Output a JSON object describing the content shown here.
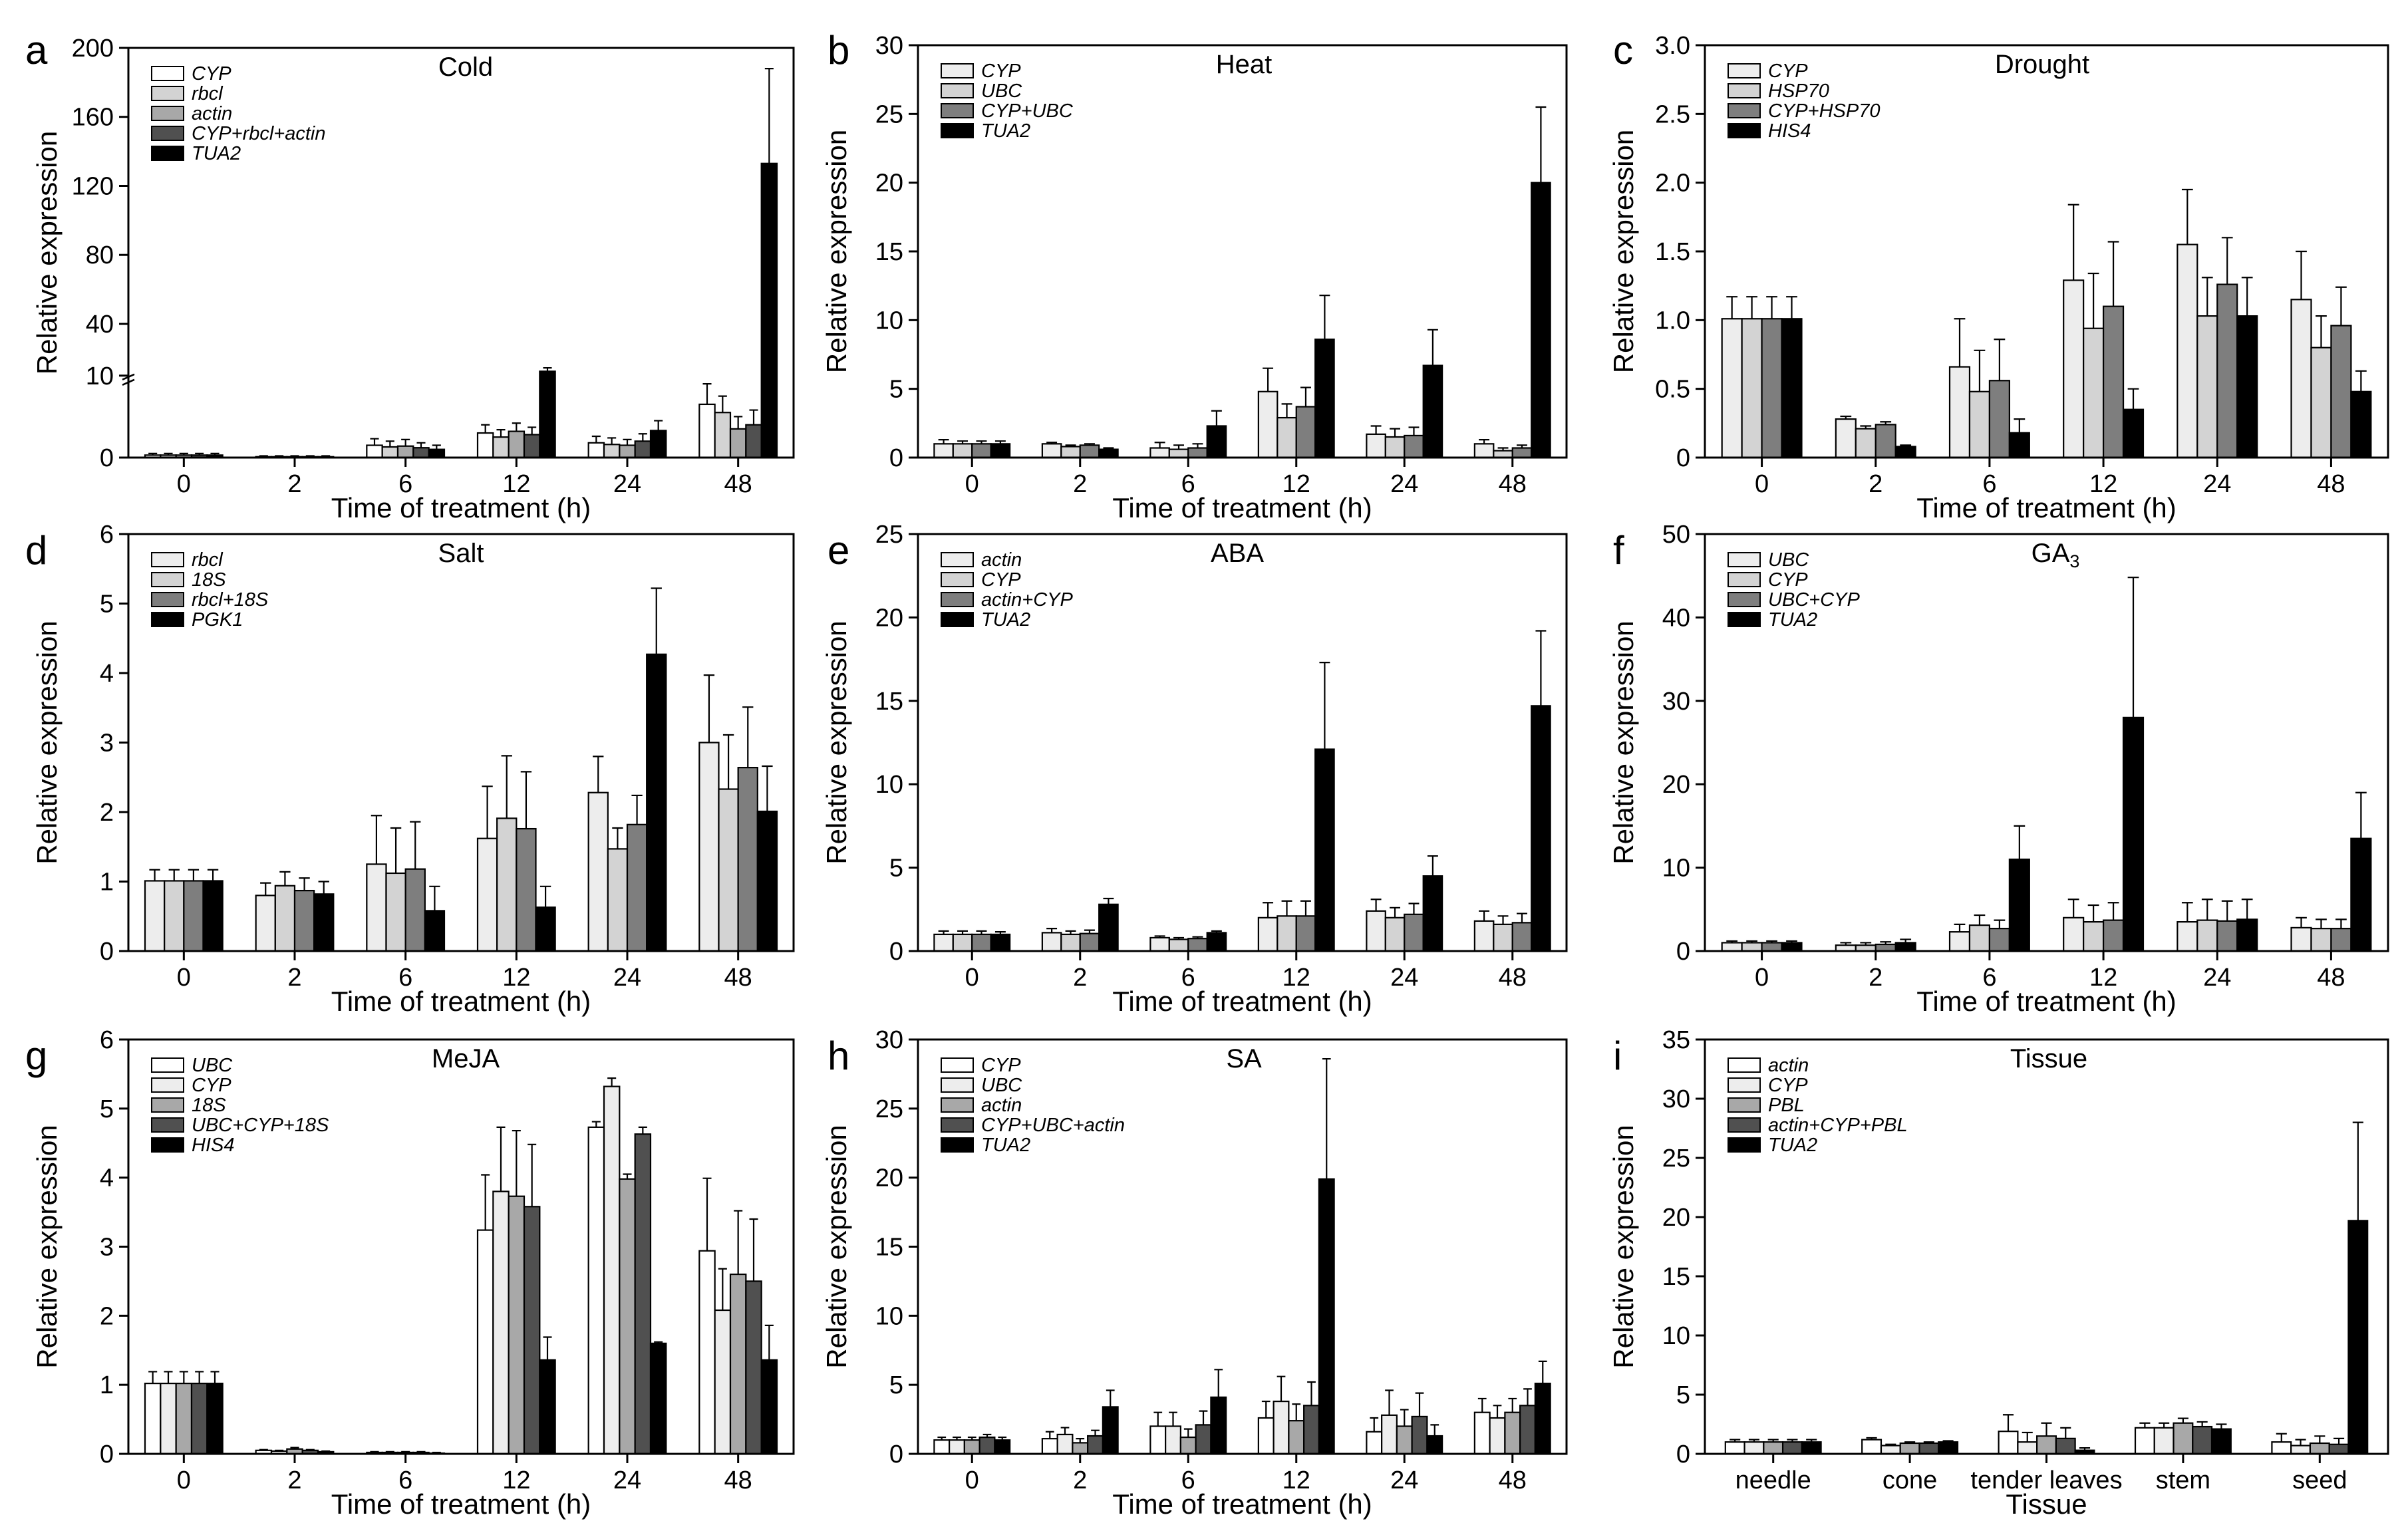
{
  "colors": {
    "white": "#ffffff",
    "very_light": "#ededed",
    "light": "#d3d3d3",
    "mid": "#a8a8a8",
    "dark": "#7e7e7e",
    "darker": "#505050",
    "black": "#000000"
  },
  "chart_data": [
    {
      "panel": "a",
      "type": "bar",
      "title": "Cold",
      "xlabel": "Time of treatment (h)",
      "ylabel": "Relative expression",
      "categories": [
        "0",
        "2",
        "6",
        "12",
        "24",
        "48"
      ],
      "y_ticks": [
        "0",
        "10",
        "40",
        "80",
        "120",
        "160",
        "200"
      ],
      "axis_break": "broken axis: 0–10 linear segment, 10–200 compressed segment",
      "series": [
        {
          "name": "CYP",
          "color": "white",
          "values": [
            0.3,
            0.1,
            1.5,
            3.0,
            1.8,
            6.5
          ],
          "errors": [
            0.2,
            0.1,
            0.8,
            1.0,
            0.8,
            2.5
          ]
        },
        {
          "name": "rbcl",
          "color": "light",
          "values": [
            0.3,
            0.1,
            1.3,
            2.5,
            1.6,
            5.5
          ],
          "errors": [
            0.2,
            0.1,
            0.7,
            0.9,
            0.8,
            2.0
          ]
        },
        {
          "name": "actin",
          "color": "mid",
          "values": [
            0.3,
            0.1,
            1.4,
            3.2,
            1.5,
            3.5
          ],
          "errors": [
            0.2,
            0.1,
            0.8,
            1.0,
            0.7,
            1.5
          ]
        },
        {
          "name": "CYP+rbcl+actin",
          "color": "darker",
          "values": [
            0.3,
            0.1,
            1.2,
            2.8,
            2.0,
            4.0
          ],
          "errors": [
            0.2,
            0.1,
            0.6,
            0.9,
            0.9,
            1.8
          ]
        },
        {
          "name": "TUA2",
          "color": "black",
          "values": [
            0.3,
            0.1,
            1.0,
            12.5,
            3.3,
            133
          ],
          "errors": [
            0.2,
            0.1,
            0.5,
            2.0,
            1.2,
            55
          ]
        }
      ]
    },
    {
      "panel": "b",
      "type": "bar",
      "title": "Heat",
      "xlabel": "Time of treatment (h)",
      "ylabel": "Relative expression",
      "categories": [
        "0",
        "2",
        "6",
        "12",
        "24",
        "48"
      ],
      "y_ticks": [
        "0",
        "5",
        "10",
        "15",
        "20",
        "25",
        "30"
      ],
      "ylim": [
        0,
        30
      ],
      "series": [
        {
          "name": "CYP",
          "color": "very_light",
          "values": [
            1.0,
            1.0,
            0.7,
            4.8,
            1.7,
            1.0
          ],
          "errors": [
            0.3,
            0.1,
            0.4,
            1.7,
            0.6,
            0.3
          ]
        },
        {
          "name": "UBC",
          "color": "light",
          "values": [
            1.0,
            0.8,
            0.6,
            2.9,
            1.5,
            0.5
          ],
          "errors": [
            0.2,
            0.1,
            0.3,
            1.0,
            0.6,
            0.2
          ]
        },
        {
          "name": "CYP+UBC",
          "color": "dark",
          "values": [
            1.0,
            0.9,
            0.7,
            3.7,
            1.6,
            0.7
          ],
          "errors": [
            0.2,
            0.1,
            0.3,
            1.4,
            0.6,
            0.2
          ]
        },
        {
          "name": "TUA2",
          "color": "black",
          "values": [
            1.0,
            0.6,
            2.3,
            8.6,
            6.7,
            20.0
          ],
          "errors": [
            0.2,
            0.1,
            1.1,
            3.2,
            2.6,
            5.5
          ]
        }
      ]
    },
    {
      "panel": "c",
      "type": "bar",
      "title": "Drought",
      "xlabel": "Time of treatment (h)",
      "ylabel": "Relative expression",
      "categories": [
        "0",
        "2",
        "6",
        "12",
        "24",
        "48"
      ],
      "y_ticks": [
        "0",
        "0.5",
        "1.0",
        "1.5",
        "2.0",
        "2.5",
        "3.0"
      ],
      "ylim": [
        0,
        3.0
      ],
      "series": [
        {
          "name": "CYP",
          "color": "very_light",
          "values": [
            1.01,
            0.28,
            0.66,
            1.29,
            1.55,
            1.15
          ],
          "errors": [
            0.16,
            0.02,
            0.35,
            0.55,
            0.4,
            0.35
          ]
        },
        {
          "name": "HSP70",
          "color": "light",
          "values": [
            1.01,
            0.21,
            0.48,
            0.94,
            1.03,
            0.8
          ],
          "errors": [
            0.16,
            0.02,
            0.3,
            0.4,
            0.28,
            0.23
          ]
        },
        {
          "name": "CYP+HSP70",
          "color": "dark",
          "values": [
            1.01,
            0.24,
            0.56,
            1.1,
            1.26,
            0.96
          ],
          "errors": [
            0.16,
            0.02,
            0.3,
            0.47,
            0.34,
            0.28
          ]
        },
        {
          "name": "HIS4",
          "color": "black",
          "values": [
            1.01,
            0.08,
            0.18,
            0.35,
            1.03,
            0.48
          ],
          "errors": [
            0.16,
            0.01,
            0.1,
            0.15,
            0.28,
            0.15
          ]
        }
      ]
    },
    {
      "panel": "d",
      "type": "bar",
      "title": "Salt",
      "xlabel": "Time of treatment (h)",
      "ylabel": "Relative expression",
      "categories": [
        "0",
        "2",
        "6",
        "12",
        "24",
        "48"
      ],
      "y_ticks": [
        "0",
        "1",
        "2",
        "3",
        "4",
        "5",
        "6"
      ],
      "ylim": [
        0,
        6
      ],
      "series": [
        {
          "name": "rbcl",
          "color": "very_light",
          "values": [
            1.01,
            0.8,
            1.25,
            1.62,
            2.28,
            3.0
          ],
          "errors": [
            0.16,
            0.18,
            0.7,
            0.75,
            0.52,
            0.97
          ]
        },
        {
          "name": "18S",
          "color": "light",
          "values": [
            1.01,
            0.94,
            1.12,
            1.91,
            1.47,
            2.33
          ],
          "errors": [
            0.16,
            0.2,
            0.65,
            0.9,
            0.3,
            0.78
          ]
        },
        {
          "name": "rbcl+18S",
          "color": "dark",
          "values": [
            1.01,
            0.87,
            1.18,
            1.76,
            1.82,
            2.64
          ],
          "errors": [
            0.16,
            0.18,
            0.68,
            0.82,
            0.42,
            0.87
          ]
        },
        {
          "name": "PGK1",
          "color": "black",
          "values": [
            1.01,
            0.82,
            0.58,
            0.63,
            4.27,
            2.01
          ],
          "errors": [
            0.16,
            0.18,
            0.35,
            0.3,
            0.95,
            0.65
          ]
        }
      ]
    },
    {
      "panel": "e",
      "type": "bar",
      "title": "ABA",
      "xlabel": "Time of treatment (h)",
      "ylabel": "Relative expression",
      "categories": [
        "0",
        "2",
        "6",
        "12",
        "24",
        "48"
      ],
      "y_ticks": [
        "0",
        "5",
        "10",
        "15",
        "20",
        "25"
      ],
      "ylim": [
        0,
        25
      ],
      "series": [
        {
          "name": "actin",
          "color": "very_light",
          "values": [
            1.0,
            1.1,
            0.8,
            2.0,
            2.4,
            1.8
          ],
          "errors": [
            0.2,
            0.25,
            0.1,
            0.9,
            0.7,
            0.6
          ]
        },
        {
          "name": "CYP",
          "color": "light",
          "values": [
            1.0,
            1.0,
            0.7,
            2.1,
            2.0,
            1.6
          ],
          "errors": [
            0.2,
            0.2,
            0.1,
            0.9,
            0.6,
            0.5
          ]
        },
        {
          "name": "actin+CYP",
          "color": "dark",
          "values": [
            1.0,
            1.05,
            0.75,
            2.1,
            2.2,
            1.7
          ],
          "errors": [
            0.2,
            0.2,
            0.1,
            0.9,
            0.65,
            0.55
          ]
        },
        {
          "name": "TUA2",
          "color": "black",
          "values": [
            1.0,
            2.8,
            1.1,
            12.1,
            4.5,
            14.7
          ],
          "errors": [
            0.15,
            0.35,
            0.1,
            5.2,
            1.2,
            4.5
          ]
        }
      ]
    },
    {
      "panel": "f",
      "type": "bar",
      "title": "GA3",
      "xlabel": "Time of treatment (h)",
      "ylabel": "Relative expression",
      "categories": [
        "0",
        "2",
        "6",
        "12",
        "24",
        "48"
      ],
      "y_ticks": [
        "0",
        "10",
        "20",
        "30",
        "40",
        "50"
      ],
      "ylim": [
        0,
        50
      ],
      "series": [
        {
          "name": "UBC",
          "color": "very_light",
          "values": [
            1.0,
            0.7,
            2.3,
            4.0,
            3.5,
            2.8
          ],
          "errors": [
            0.2,
            0.3,
            0.9,
            2.2,
            2.3,
            1.2
          ]
        },
        {
          "name": "CYP",
          "color": "light",
          "values": [
            1.0,
            0.7,
            3.1,
            3.5,
            3.7,
            2.7
          ],
          "errors": [
            0.2,
            0.3,
            1.2,
            2.0,
            2.5,
            1.1
          ]
        },
        {
          "name": "UBC+CYP",
          "color": "dark",
          "values": [
            1.0,
            0.8,
            2.7,
            3.7,
            3.6,
            2.7
          ],
          "errors": [
            0.2,
            0.3,
            1.0,
            2.1,
            2.4,
            1.1
          ]
        },
        {
          "name": "TUA2",
          "color": "black",
          "values": [
            1.0,
            1.0,
            11.0,
            28.0,
            3.8,
            13.5
          ],
          "errors": [
            0.2,
            0.4,
            4.0,
            16.8,
            2.4,
            5.5
          ]
        }
      ]
    },
    {
      "panel": "g",
      "type": "bar",
      "title": "MeJA",
      "xlabel": "Time of treatment (h)",
      "ylabel": "Relative expression",
      "categories": [
        "0",
        "2",
        "6",
        "12",
        "24",
        "48"
      ],
      "y_ticks": [
        "0",
        "1",
        "2",
        "3",
        "4",
        "5",
        "6"
      ],
      "ylim": [
        0,
        6
      ],
      "series": [
        {
          "name": "UBC",
          "color": "white",
          "values": [
            1.02,
            0.05,
            0.02,
            3.24,
            4.73,
            2.94
          ],
          "errors": [
            0.17,
            0.01,
            0.01,
            0.8,
            0.08,
            1.05
          ]
        },
        {
          "name": "CYP",
          "color": "very_light",
          "values": [
            1.02,
            0.04,
            0.02,
            3.8,
            5.32,
            2.08
          ],
          "errors": [
            0.17,
            0.01,
            0.01,
            0.93,
            0.12,
            0.6
          ]
        },
        {
          "name": "18S",
          "color": "mid",
          "values": [
            1.02,
            0.07,
            0.02,
            3.73,
            3.98,
            2.6
          ],
          "errors": [
            0.17,
            0.02,
            0.01,
            0.95,
            0.07,
            0.92
          ]
        },
        {
          "name": "UBC+CYP+18S",
          "color": "darker",
          "values": [
            1.02,
            0.05,
            0.02,
            3.58,
            4.63,
            2.5
          ],
          "errors": [
            0.17,
            0.01,
            0.01,
            0.9,
            0.1,
            0.9
          ]
        },
        {
          "name": "HIS4",
          "color": "black",
          "values": [
            1.02,
            0.03,
            0.01,
            1.36,
            1.6,
            1.36
          ],
          "errors": [
            0.17,
            0.01,
            0.01,
            0.33,
            0.02,
            0.5
          ]
        }
      ]
    },
    {
      "panel": "h",
      "type": "bar",
      "title": "SA",
      "xlabel": "Time of treatment (h)",
      "ylabel": "Relative expression",
      "categories": [
        "0",
        "2",
        "6",
        "12",
        "24",
        "48"
      ],
      "y_ticks": [
        "0",
        "5",
        "10",
        "15",
        "20",
        "25",
        "30"
      ],
      "ylim": [
        0,
        30
      ],
      "series": [
        {
          "name": "CYP",
          "color": "white",
          "values": [
            1.0,
            1.1,
            2.0,
            2.6,
            1.6,
            3.0
          ],
          "errors": [
            0.2,
            0.5,
            1.0,
            1.2,
            1.0,
            1.0
          ]
        },
        {
          "name": "UBC",
          "color": "very_light",
          "values": [
            1.0,
            1.4,
            2.0,
            3.8,
            2.8,
            2.6
          ],
          "errors": [
            0.2,
            0.5,
            1.0,
            1.8,
            1.8,
            0.9
          ]
        },
        {
          "name": "actin",
          "color": "mid",
          "values": [
            1.0,
            0.8,
            1.2,
            2.4,
            2.0,
            3.0
          ],
          "errors": [
            0.2,
            0.3,
            0.6,
            1.2,
            1.2,
            1.0
          ]
        },
        {
          "name": "CYP+UBC+actin",
          "color": "darker",
          "values": [
            1.2,
            1.3,
            2.1,
            3.5,
            2.7,
            3.5
          ],
          "errors": [
            0.2,
            0.4,
            1.0,
            1.7,
            1.7,
            1.2
          ]
        },
        {
          "name": "TUA2",
          "color": "black",
          "values": [
            1.0,
            3.4,
            4.1,
            19.9,
            1.3,
            5.1
          ],
          "errors": [
            0.2,
            1.2,
            2.0,
            8.7,
            0.8,
            1.6
          ]
        }
      ]
    },
    {
      "panel": "i",
      "type": "bar",
      "title": "Tissue",
      "xlabel": "Tissue",
      "ylabel": "Relative expression",
      "categories": [
        "needle",
        "cone",
        "tender leaves",
        "stem",
        "seed"
      ],
      "y_ticks": [
        "0",
        "5",
        "10",
        "15",
        "20",
        "25",
        "30",
        "35"
      ],
      "ylim": [
        0,
        35
      ],
      "series": [
        {
          "name": "actin",
          "color": "white",
          "values": [
            1.0,
            1.2,
            1.9,
            2.2,
            1.0
          ],
          "errors": [
            0.2,
            0.15,
            1.4,
            0.4,
            0.7
          ]
        },
        {
          "name": "CYP",
          "color": "very_light",
          "values": [
            1.0,
            0.7,
            1.0,
            2.2,
            0.7
          ],
          "errors": [
            0.2,
            0.1,
            0.8,
            0.4,
            0.5
          ]
        },
        {
          "name": "PBL",
          "color": "mid",
          "values": [
            1.0,
            0.9,
            1.5,
            2.6,
            0.9
          ],
          "errors": [
            0.2,
            0.1,
            1.1,
            0.4,
            0.6
          ]
        },
        {
          "name": "actin+CYP+PBL",
          "color": "darker",
          "values": [
            1.0,
            0.9,
            1.3,
            2.3,
            0.8
          ],
          "errors": [
            0.2,
            0.1,
            0.9,
            0.4,
            0.5
          ]
        },
        {
          "name": "TUA2",
          "color": "black",
          "values": [
            1.0,
            1.0,
            0.3,
            2.1,
            19.7
          ],
          "errors": [
            0.2,
            0.1,
            0.2,
            0.4,
            8.3
          ]
        }
      ]
    }
  ]
}
